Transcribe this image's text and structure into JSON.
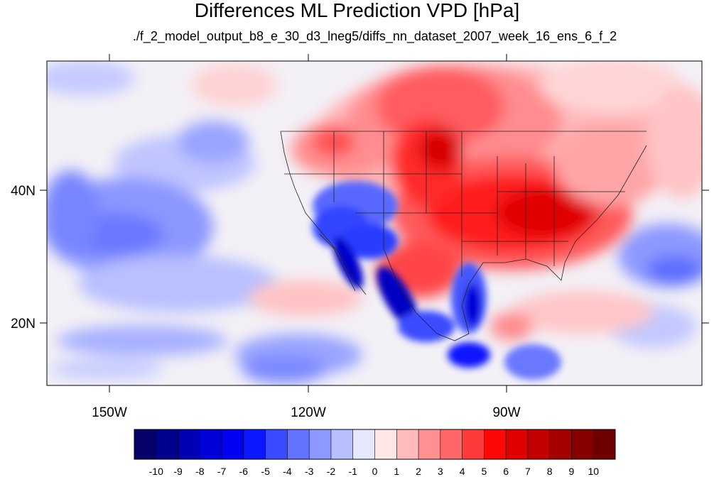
{
  "title": "Differences ML Prediction VPD [hPa]",
  "subtitle": "./f_2_model_output_b8_e_30_d3_lneg5/diffs_nn_dataset_2007_week_16_ens_6_f_2",
  "map": {
    "lat_labels": [
      "40N",
      "20N"
    ],
    "lon_labels": [
      "150W",
      "120W",
      "90W"
    ]
  },
  "colorbar": {
    "labels": [
      "-10",
      "-9",
      "-8",
      "-7",
      "-6",
      "-5",
      "-4",
      "-3",
      "-2",
      "-1",
      "0",
      "1",
      "2",
      "3",
      "4",
      "5",
      "6",
      "7",
      "8",
      "9",
      "10"
    ],
    "colors": [
      "#05006a",
      "#00008e",
      "#0000b4",
      "#0000d8",
      "#0000f5",
      "#0a18ff",
      "#3a4bff",
      "#6373ff",
      "#8d99ff",
      "#b8bfff",
      "#e5e8ff",
      "#ffe7e8",
      "#ffbabb",
      "#ff9092",
      "#ff6668",
      "#ff3a3b",
      "#ff0707",
      "#e00000",
      "#c20000",
      "#a40000",
      "#860000",
      "#6e0000"
    ]
  }
}
